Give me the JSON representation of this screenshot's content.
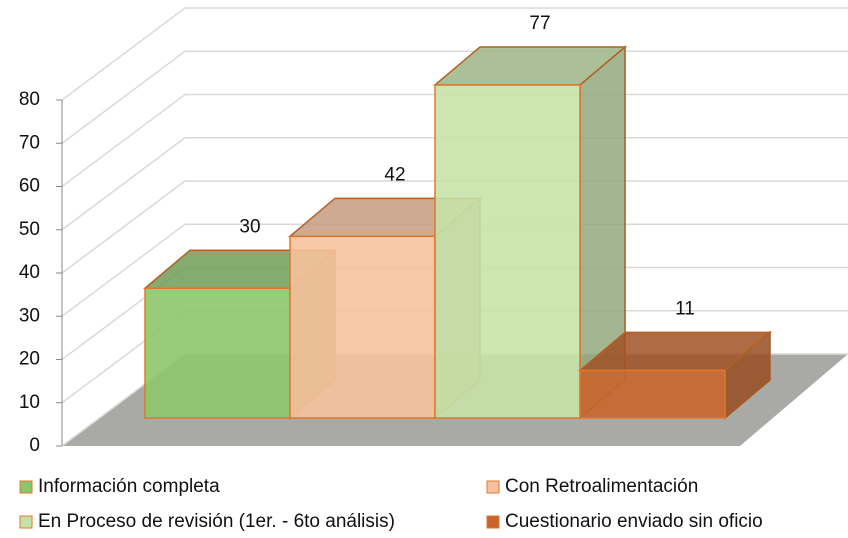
{
  "chart_data": {
    "type": "bar3d",
    "series": [
      {
        "name": "Información completa",
        "color": "#8cc66a",
        "values": [
          30
        ]
      },
      {
        "name": "Con Retroalimentación",
        "color": "#f6c29d",
        "values": [
          42
        ]
      },
      {
        "name": "En Proceso de revisión (1er. - 6to análisis)",
        "color": "#c6e2a8",
        "values": [
          77
        ]
      },
      {
        "name": "Cuestionario enviado sin oficio",
        "color": "#c9652c",
        "values": [
          11
        ]
      }
    ],
    "edge_color": "#e0782c",
    "ylim": [
      0,
      80
    ],
    "yticks": [
      0,
      10,
      20,
      30,
      40,
      50,
      60,
      70,
      80
    ],
    "grid": true,
    "legend": "bottom"
  }
}
